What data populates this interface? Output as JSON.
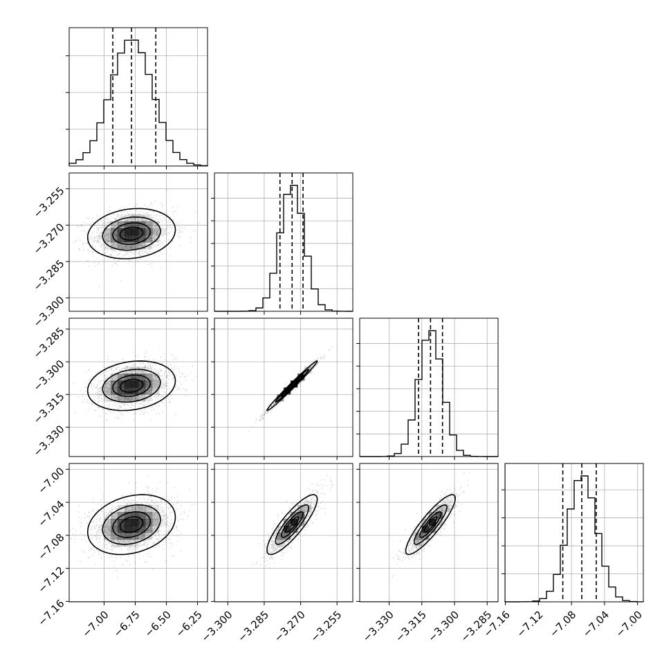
{
  "chart_data": {
    "type": "corner",
    "ndim": 4,
    "series": [
      {
        "mean": -6.78,
        "sd": 0.17,
        "quantiles": [
          -6.93,
          -6.78,
          -6.585
        ]
      },
      {
        "mean": -3.2735,
        "sd": 0.005,
        "quantiles": [
          -3.2785,
          -3.2735,
          -3.269
        ]
      },
      {
        "mean": -3.311,
        "sd": 0.0055,
        "quantiles": [
          -3.3165,
          -3.311,
          -3.3055
        ]
      },
      {
        "mean": -7.067,
        "sd": 0.0175,
        "quantiles": [
          -7.0905,
          -7.0675,
          -7.05
        ]
      }
    ],
    "correlations": {
      "1-0": 0.15,
      "2-0": 0.2,
      "2-1": 0.99,
      "3-0": 0.25,
      "3-1": 0.85,
      "3-2": 0.88
    },
    "axis_ranges": [
      [
        -7.28,
        -6.17
      ],
      [
        -3.3055,
        -3.2485
      ],
      [
        -3.3435,
        -3.28
      ],
      [
        -7.1605,
        -6.993
      ]
    ],
    "x_tick_labels": [
      {
        "values": [
          -7.0,
          -6.75,
          -6.5,
          -6.25
        ],
        "labels": [
          "−7.00",
          "−6.75",
          "−6.50",
          "−6.25"
        ]
      },
      {
        "values": [
          -3.3,
          -3.285,
          -3.27,
          -3.255
        ],
        "labels": [
          "−3.300",
          "−3.285",
          "−3.270",
          "−3.255"
        ]
      },
      {
        "values": [
          -3.33,
          -3.315,
          -3.3,
          -3.285
        ],
        "labels": [
          "−3.330",
          "−3.315",
          "−3.300",
          "−3.285"
        ]
      },
      {
        "values": [
          -7.16,
          -7.12,
          -7.08,
          -7.04,
          -7.0
        ],
        "labels": [
          "−7.16",
          "−7.12",
          "−7.08",
          "−7.04",
          "−7.00"
        ]
      }
    ],
    "y_tick_labels": [
      null,
      {
        "values": [
          -3.255,
          -3.27,
          -3.285,
          -3.3
        ],
        "labels": [
          "−3.255",
          "−3.270",
          "−3.285",
          "−3.300"
        ]
      },
      {
        "values": [
          -3.285,
          -3.3,
          -3.315,
          -3.33
        ],
        "labels": [
          "−3.285",
          "−3.300",
          "−3.315",
          "−3.330"
        ]
      },
      {
        "values": [
          -7.0,
          -7.04,
          -7.08,
          -7.12,
          -7.16
        ],
        "labels": [
          "−7.00",
          "−7.04",
          "−7.08",
          "−7.12",
          "−7.16"
        ]
      }
    ],
    "hist_peaks": [
      3,
      5,
      5,
      4
    ],
    "contour_levels_sigma": [
      0.5,
      1.0,
      1.5,
      2.0
    ],
    "grid": true,
    "legend": "none"
  }
}
